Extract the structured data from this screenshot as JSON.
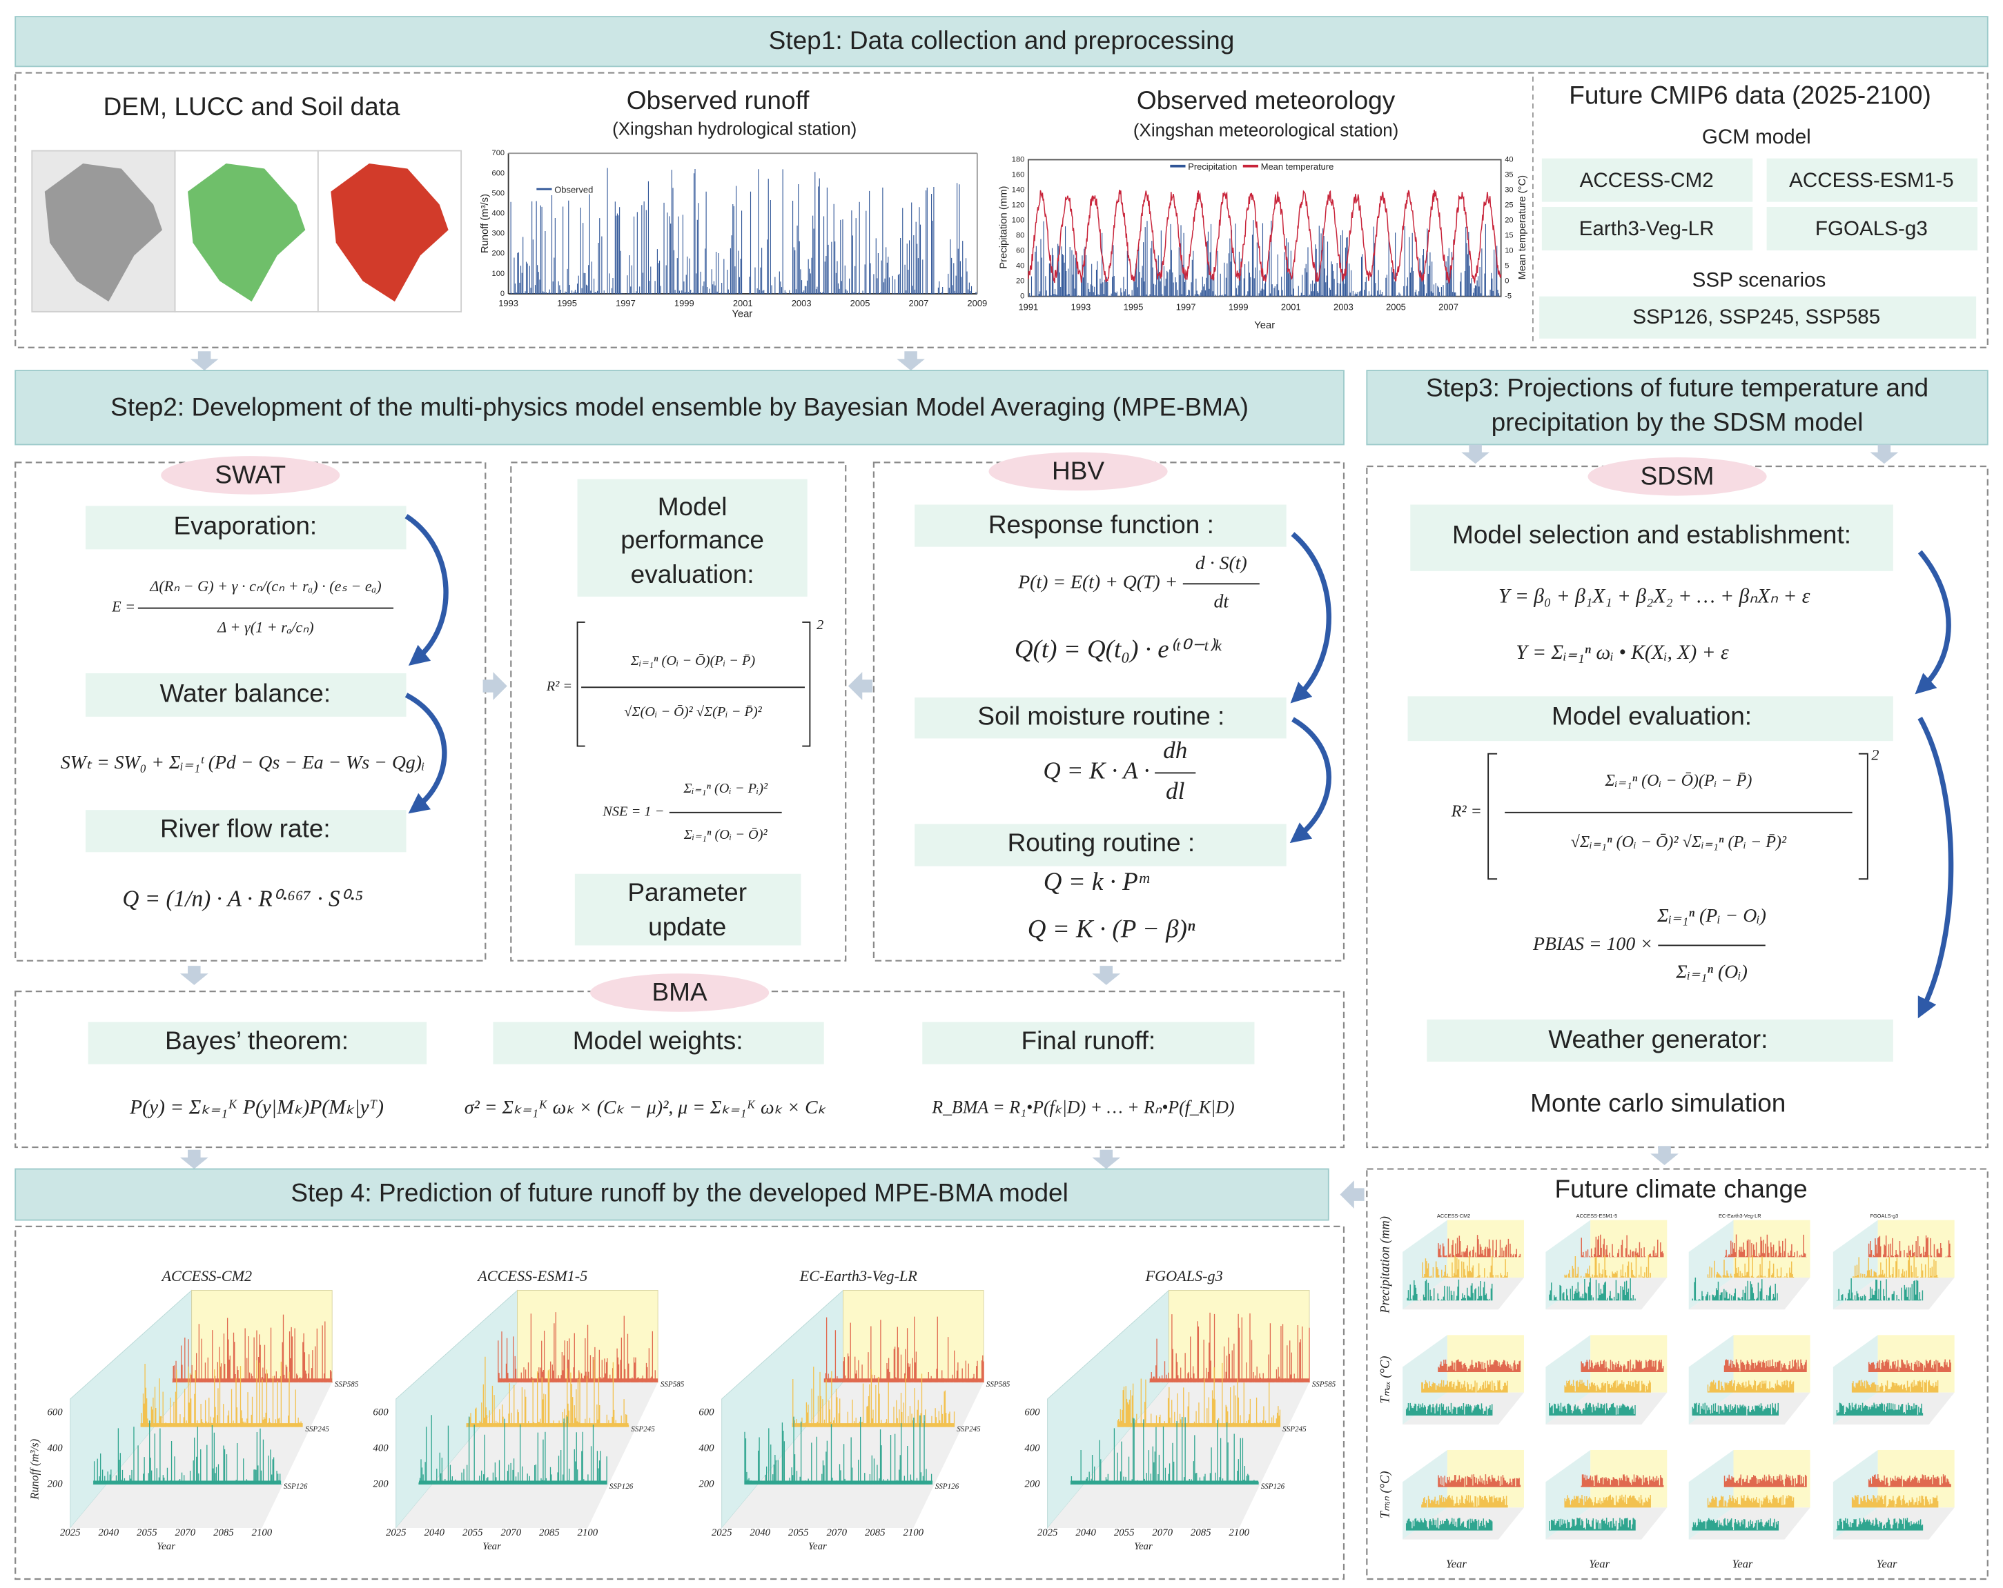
{
  "step1": {
    "title": "Step1: Data collection and preprocessing",
    "dem_title": "DEM, LUCC and Soil data",
    "runoff": {
      "title": "Observed runoff",
      "subtitle": "(Xingshan hydrological station)",
      "legend": "Observed",
      "y_label": "Runoff (m³/s)",
      "x_label": "Year",
      "xticks": [
        1993,
        1995,
        1997,
        1999,
        2001,
        2003,
        2005,
        2007,
        2009
      ],
      "yticks": [
        0,
        100,
        200,
        300,
        400,
        500,
        600,
        700
      ]
    },
    "meteorology": {
      "title": "Observed meteorology",
      "subtitle": "(Xingshan meteorological station)",
      "legend": [
        "Precipitation",
        "Mean temperature"
      ],
      "y_label": "Precipitation (mm)",
      "y2_label": "Mean temperature (°C)",
      "x_label": "Year",
      "xticks": [
        1991,
        1993,
        1995,
        1997,
        1999,
        2001,
        2003,
        2005,
        2007
      ],
      "yticks": [
        0,
        20,
        40,
        60,
        80,
        100,
        120,
        140,
        160,
        180
      ],
      "y2ticks": [
        -5,
        0,
        5,
        10,
        15,
        20,
        25,
        30,
        35,
        40
      ]
    },
    "cmip6": {
      "title": "Future CMIP6 data (2025-2100)",
      "gcm_label": "GCM model",
      "gcms": [
        "ACCESS-CM2",
        "ACCESS-ESM1-5",
        "Earth3-Veg-LR",
        "FGOALS-g3"
      ],
      "ssp_label": "SSP scenarios",
      "ssps": "SSP126, SSP245, SSP585"
    }
  },
  "step2": {
    "title": "Step2: Development of the multi-physics model ensemble by Bayesian Model Averaging (MPE-BMA)",
    "swat": {
      "label": "SWAT",
      "evaporation": "Evaporation:",
      "eq_evaporation": {
        "lhs": "E =",
        "num": "Δ(Rₙ − G) + γ · cₙ/(cₙ + rₐ) · (eₛ − eₐ)",
        "den": "Δ + γ(1 + rₐ/cₙ)"
      },
      "water_balance": "Water balance:",
      "eq_water_balance": "SWₜ = SW₀ + Σᵢ₌₁ᵗ (Pd − Qs − Ea − Ws − Qg)ᵢ",
      "river_flow": "River flow rate:",
      "eq_river_flow": "Q = (1/n) · A · R⁰·⁶⁶⁷ · S⁰·⁵"
    },
    "evaluation": {
      "title": [
        "Model",
        "performance",
        "evaluation:"
      ],
      "eq_r2": {
        "lhs": "R² =",
        "num": "Σᵢ₌₁ⁿ (Oᵢ − Ō)(Pᵢ − P̄)",
        "den": "√Σ(Oᵢ − Ō)² √Σ(Pᵢ − P̄)²",
        "power": "2"
      },
      "eq_nse": {
        "lhs": "NSE = 1 −",
        "num": "Σᵢ₌₁ⁿ (Oᵢ − Pᵢ)²",
        "den": "Σᵢ₌₁ⁿ (Oᵢ − Ō)²"
      },
      "update": [
        "Parameter",
        "update"
      ]
    },
    "hbv": {
      "label": "HBV",
      "response": "Response function :",
      "eq_response": {
        "lhs": "P(t) = E(t) + Q(T) +",
        "num": "d · S(t)",
        "den": "dt"
      },
      "eq_recession": "Q(t) = Q(t₀) · e⁽ᵗ⁰⁻ᵗ⁾ᵏ",
      "soil": "Soil moisture routine :",
      "eq_soil": {
        "lhs": "Q = K · A ·",
        "num": "dh",
        "den": "dl"
      },
      "routing": "Routing routine :",
      "eq_routing": [
        "Q = k · Pᵐ",
        "Q = K · (P − β)ⁿ"
      ]
    },
    "bma": {
      "label": "BMA",
      "bayes": "Bayes’ theorem:",
      "eq_bayes": "P(y) = Σₖ₌₁ᴷ P(y|Mₖ)P(Mₖ|yᵀ)",
      "weights": "Model weights:",
      "eq_weights": "σ² = Σₖ₌₁ᴷ ωₖ × (Cₖ − μ)², μ = Σₖ₌₁ᴷ ωₖ × Cₖ",
      "final": "Final runoff:",
      "eq_final": "R_BMA = R₁•P(fₖ|D) + … + Rₙ•P(f_K|D)"
    }
  },
  "step3": {
    "title": [
      "Step3: Projections of future temperature and",
      "precipitation by the SDSM model"
    ],
    "label": "SDSM",
    "selection": "Model selection and establishment:",
    "eq_linear": "Y = β₀ + β₁X₁ + β₂X₂ + … + βₙXₙ + ε",
    "eq_kernel": "Y = Σᵢ₌₁ⁿ ωᵢ • K(Xᵢ, X) + ε",
    "evaluation": "Model evaluation:",
    "eq_r2": {
      "lhs": "R² =",
      "num": "Σᵢ₌₁ⁿ (Oᵢ − Ō)(Pᵢ − P̄)",
      "den": "√Σᵢ₌₁ⁿ (Oᵢ − Ō)²  √Σᵢ₌₁ⁿ (Pᵢ − P̄)²",
      "power": "2"
    },
    "eq_pbias": {
      "lhs": "PBIAS = 100 ×",
      "num": "Σᵢ₌₁ⁿ (Pᵢ − Oᵢ)",
      "den": "Σᵢ₌₁ⁿ (Oᵢ)"
    },
    "generator": "Weather generator:",
    "simulation": "Monte carlo simulation"
  },
  "climate": {
    "title": "Future climate change",
    "row_labels": [
      "Precipitation (mm)",
      "Tₘₐₓ (°C)",
      "Tₘᵢₙ (°C)"
    ],
    "x_label": "Year"
  },
  "step4": {
    "title": "Step 4: Prediction of future runoff by the developed MPE-BMA model",
    "panels": [
      "ACCESS-CM2",
      "ACCESS-ESM1-5",
      "EC-Earth3-Veg-LR",
      "FGOALS-g3"
    ],
    "scenarios": [
      "SSP585",
      "SSP245",
      "SSP126"
    ],
    "y_label": "Runoff (m³/s)",
    "x_label": "Year",
    "xticks": [
      2025,
      2040,
      2055,
      2070,
      2085,
      2100
    ],
    "yticks": [
      600,
      400,
      200
    ]
  }
}
